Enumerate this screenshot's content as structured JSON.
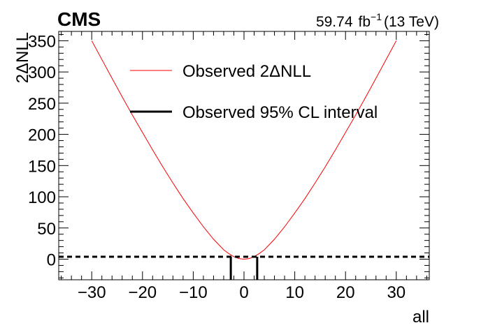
{
  "chart_data": {
    "type": "line",
    "experiment_label": "CMS",
    "lumi_value": "59.74",
    "lumi_unit": "fb",
    "lumi_exponent": "−1",
    "energy_label": "(13 TeV)",
    "xlabel": "all",
    "ylabel": "2ΔNLL",
    "xlim": [
      -36.5,
      36.5
    ],
    "ylim": [
      -33,
      365
    ],
    "x_ticks": [
      -30,
      -20,
      -10,
      0,
      10,
      20,
      30
    ],
    "x_tick_labels": [
      "−30",
      "−20",
      "−10",
      "0",
      "10",
      "20",
      "30"
    ],
    "y_ticks": [
      0,
      50,
      100,
      150,
      200,
      250,
      300,
      350
    ],
    "y_tick_labels": [
      "0",
      "50",
      "100",
      "150",
      "200",
      "250",
      "300",
      "350"
    ],
    "legend_position": "top",
    "series": [
      {
        "name": "Observed 2ΔNLL",
        "color": "#ff0000",
        "x": [
          -30,
          -28,
          -26,
          -24,
          -22,
          -20,
          -18,
          -16,
          -14,
          -12,
          -10,
          -8,
          -6,
          -4,
          -3,
          -2,
          -1,
          0,
          1,
          2,
          3,
          4,
          6,
          8,
          10,
          12,
          14,
          16,
          18,
          20,
          22,
          24,
          26,
          28,
          30
        ],
        "y": [
          350,
          320,
          290,
          260,
          231,
          203,
          175,
          148,
          122,
          97,
          74,
          52,
          32,
          15,
          9,
          4,
          1,
          0,
          1,
          4,
          9,
          15,
          32,
          52,
          74,
          97,
          122,
          148,
          175,
          203,
          231,
          260,
          290,
          320,
          350
        ]
      }
    ],
    "reference_line": {
      "y": 3.84,
      "style": "dashed",
      "color": "#000000"
    },
    "interval": {
      "name": "Observed 95% CL interval",
      "color": "#000000",
      "low": -2.6,
      "high": 2.6
    }
  }
}
